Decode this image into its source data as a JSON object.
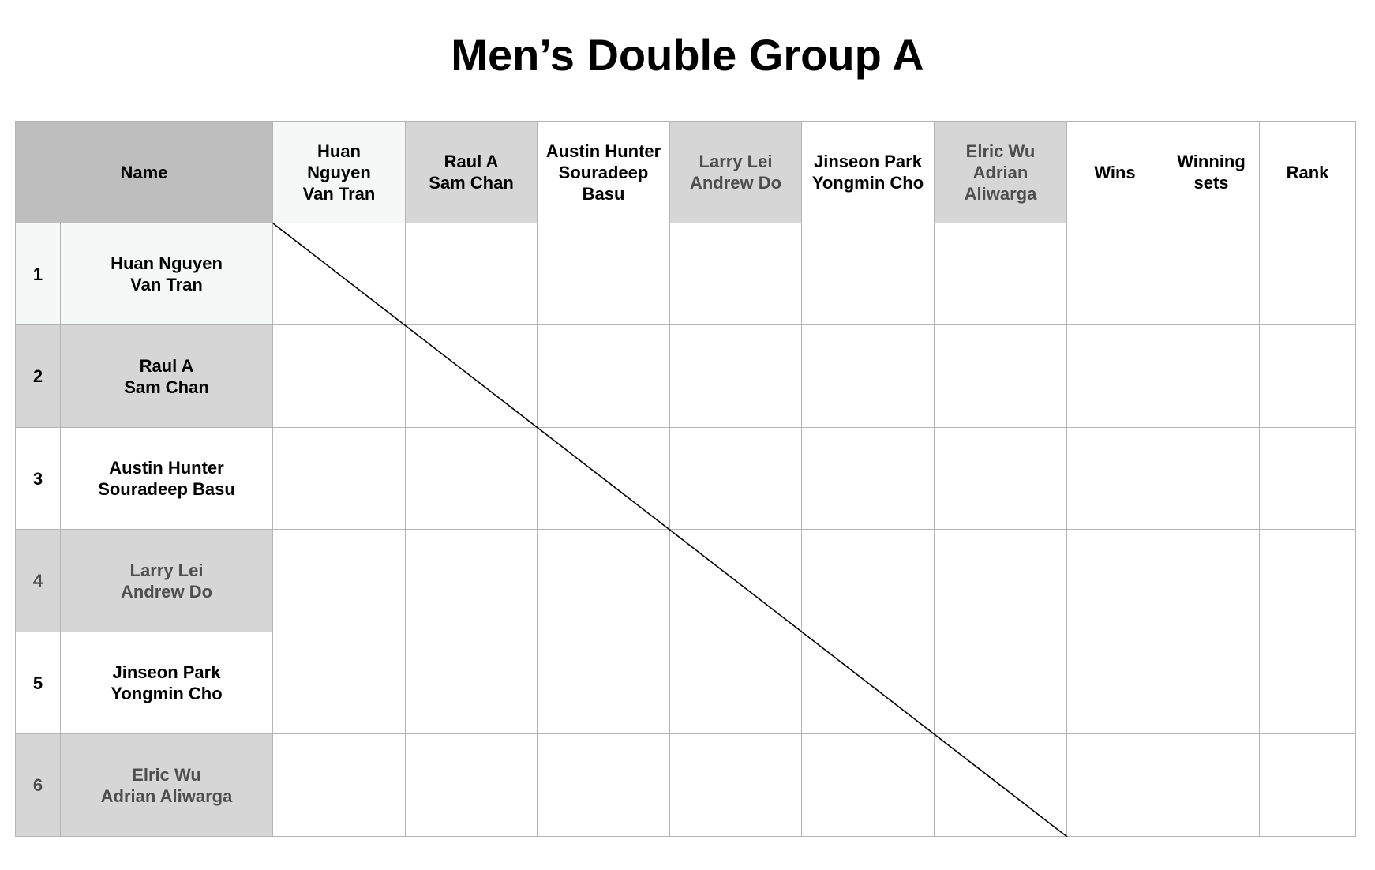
{
  "title": "Men’s Double Group A",
  "header": {
    "name_label": "Name",
    "opponents": [
      "Huan\nNguyen\nVan Tran",
      "Raul A\nSam Chan",
      "Austin Hunter\nSouradeep\nBasu",
      "Larry Lei\nAndrew Do",
      "Jinseon Park\nYongmin Cho",
      "Elric Wu\nAdrian\nAliwarga"
    ],
    "wins_label": "Wins",
    "winning_sets_label": "Winning\nsets",
    "rank_label": "Rank"
  },
  "rows": [
    {
      "number": "1",
      "name": "Huan Nguyen\nVan Tran"
    },
    {
      "number": "2",
      "name": "Raul A\nSam Chan"
    },
    {
      "number": "3",
      "name": "Austin Hunter\nSouradeep Basu"
    },
    {
      "number": "4",
      "name": "Larry Lei\nAndrew Do"
    },
    {
      "number": "5",
      "name": "Jinseon Park\nYongmin Cho"
    },
    {
      "number": "6",
      "name": "Elric Wu\nAdrian Aliwarga"
    }
  ],
  "colors": {
    "header_name_bg": "#bdbebd",
    "shaded_bg": "#d6d6d6",
    "light_bg": "#f6f7f7",
    "grid_line": "#b4b4b4",
    "muted_text": "#4e4e4e"
  }
}
